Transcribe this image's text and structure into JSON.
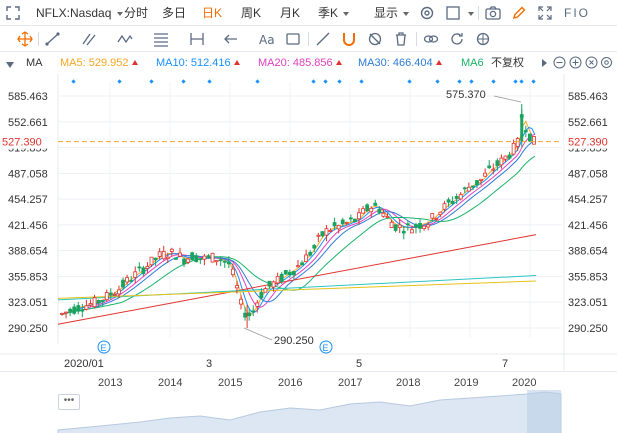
{
  "toolbar": {
    "symbol": "NFLX:Nasdaq",
    "timeframes": [
      "分时",
      "多日",
      "日K",
      "周K",
      "月K",
      "季K"
    ],
    "active_timeframe": "日K",
    "display_label": "显示",
    "right_label": "FIO"
  },
  "legend": {
    "main": "MA",
    "ma5": "MA5: 529.952",
    "ma10": "MA10: 512.416",
    "ma20": "MA20: 485.856",
    "ma30": "MA30: 466.404",
    "ma60": "MA6",
    "adjust": "不复权",
    "colors": {
      "ma5": "#f5a623",
      "ma10": "#1890ff",
      "ma20": "#e040c0",
      "ma30": "#2e7bd6",
      "ma60": "#19b36b"
    }
  },
  "chart": {
    "y_ticks": [
      "585.463",
      "552.661",
      "519.859",
      "487.058",
      "454.257",
      "421.456",
      "388.654",
      "355.853",
      "323.051",
      "290.250"
    ],
    "current_price": "527.390",
    "high_label": "575.370",
    "low_label": "290.250",
    "x_labels": [
      "2020/01",
      "3",
      "5",
      "7"
    ],
    "event_marker": "E",
    "colors": {
      "up": "#e0332c",
      "down": "#1aa260",
      "price_line": "#f5a623"
    }
  },
  "overview": {
    "years": [
      "2013",
      "2014",
      "2015",
      "2016",
      "2017",
      "2018",
      "2019",
      "2020"
    ],
    "handle": "•••"
  }
}
